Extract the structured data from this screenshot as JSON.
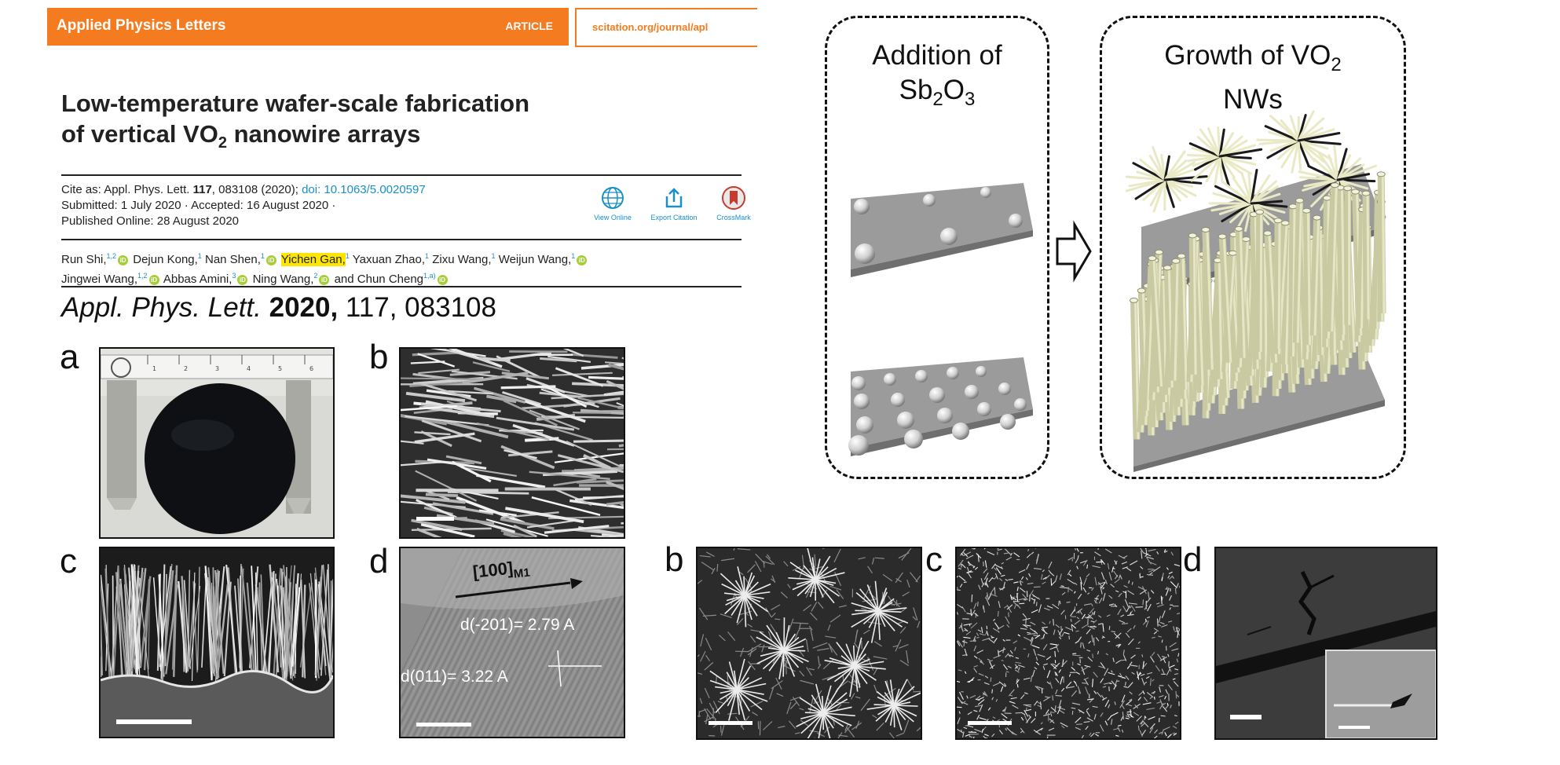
{
  "header": {
    "journal": "Applied Physics Letters",
    "article_type": "ARTICLE",
    "site": "scitation.org/journal/apl"
  },
  "paper": {
    "title_line1": "Low-temperature wafer-scale fabrication",
    "title_line2_pre": "of vertical VO",
    "title_line2_sub": "2",
    "title_line2_post": " nanowire arrays",
    "cite_as_prefix": "Cite as: Appl. Phys. Lett. ",
    "cite_volume": "117",
    "cite_rest": ", 083108 (2020); ",
    "doi": "doi: 10.1063/5.0020597",
    "submitted": "Submitted: 1 July 2020 · Accepted: 16 August 2020 ·",
    "published": "Published Online: 28 August 2020",
    "tools": [
      {
        "label": "View Online",
        "icon": "globe-icon"
      },
      {
        "label": "Export Citation",
        "icon": "share-icon"
      },
      {
        "label": "CrossMark",
        "icon": "crossmark-icon"
      }
    ],
    "authors": [
      {
        "name": "Run Shi,",
        "aff": "1,2",
        "orcid": true
      },
      {
        "name": "Dejun Kong,",
        "aff": "1",
        "orcid": false
      },
      {
        "name": "Nan Shen,",
        "aff": "1",
        "orcid": true
      },
      {
        "name": "Yichen Gan,",
        "aff": "1",
        "orcid": false,
        "highlight": true
      },
      {
        "name": "Yaxuan Zhao,",
        "aff": "1",
        "orcid": false
      },
      {
        "name": "Zixu Wang,",
        "aff": "1",
        "orcid": false
      },
      {
        "name": "Weijun Wang,",
        "aff": "1",
        "orcid": true
      },
      {
        "name": "Jingwei Wang,",
        "aff": "1,2",
        "orcid": true,
        "newline": true
      },
      {
        "name": "Abbas Amini,",
        "aff": "3",
        "orcid": true
      },
      {
        "name": "Ning Wang,",
        "aff": "2",
        "orcid": true
      },
      {
        "name": "and Chun Cheng",
        "aff": "1,a)",
        "orcid": true
      }
    ],
    "orcid_label": "iD",
    "citation_journal": "Appl. Phys. Lett.",
    "citation_year": "2020,",
    "citation_rest": " 117, 083108"
  },
  "figure": {
    "left_panels": [
      "a",
      "b",
      "c",
      "d"
    ],
    "hrtem_direction": "[100]",
    "hrtem_direction_sub": "M1",
    "hrtem_d1": "d(-201)= 2.79 A",
    "hrtem_d2": "d(011)= 3.22 A",
    "bottom_panels": [
      "b",
      "c",
      "d"
    ],
    "schematic_step1_line1": "Addition of",
    "schematic_step1_sb": "Sb",
    "schematic_step1_sub1": "2",
    "schematic_step1_o": "O",
    "schematic_step1_sub2": "3",
    "schematic_step2_line1_pre": "Growth of VO",
    "schematic_step2_sub": "2",
    "schematic_step2_line2": "NWs",
    "ruler_numbers": [
      "1",
      "2",
      "3",
      "4",
      "5",
      "6"
    ]
  }
}
